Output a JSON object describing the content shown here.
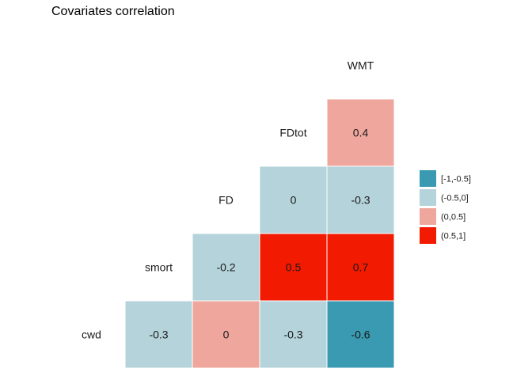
{
  "chart_data": {
    "type": "heatmap",
    "title": "Covariates correlation",
    "variables": [
      "cwd",
      "smort",
      "FD",
      "FDtot",
      "WMT"
    ],
    "cells": [
      {
        "row": "cwd",
        "col": "smort",
        "value": -0.3,
        "label": "-0.3",
        "bin": "(-0.5,0]"
      },
      {
        "row": "cwd",
        "col": "FD",
        "value": 0,
        "label": "0",
        "bin": "(0,0.5]"
      },
      {
        "row": "cwd",
        "col": "FDtot",
        "value": -0.3,
        "label": "-0.3",
        "bin": "(-0.5,0]"
      },
      {
        "row": "cwd",
        "col": "WMT",
        "value": -0.6,
        "label": "-0.6",
        "bin": "[-1,-0.5]"
      },
      {
        "row": "smort",
        "col": "FD",
        "value": -0.2,
        "label": "-0.2",
        "bin": "(-0.5,0]"
      },
      {
        "row": "smort",
        "col": "FDtot",
        "value": 0.5,
        "label": "0.5",
        "bin": "(0.5,1]"
      },
      {
        "row": "smort",
        "col": "WMT",
        "value": 0.7,
        "label": "0.7",
        "bin": "(0.5,1]"
      },
      {
        "row": "FD",
        "col": "FDtot",
        "value": 0,
        "label": "0",
        "bin": "(-0.5,0]"
      },
      {
        "row": "FD",
        "col": "WMT",
        "value": -0.3,
        "label": "-0.3",
        "bin": "(-0.5,0]"
      },
      {
        "row": "FDtot",
        "col": "WMT",
        "value": 0.4,
        "label": "0.4",
        "bin": "(0,0.5]"
      }
    ],
    "legend": {
      "position": "right",
      "entries": [
        {
          "label": "[-1,-0.5]",
          "color": "#3A9AB2"
        },
        {
          "label": "(-0.5,0]",
          "color": "#B4D3DA"
        },
        {
          "label": "(0,0.5]",
          "color": "#EFA79D"
        },
        {
          "label": "(0.5,1]",
          "color": "#F21A00"
        }
      ]
    },
    "grid": false
  }
}
